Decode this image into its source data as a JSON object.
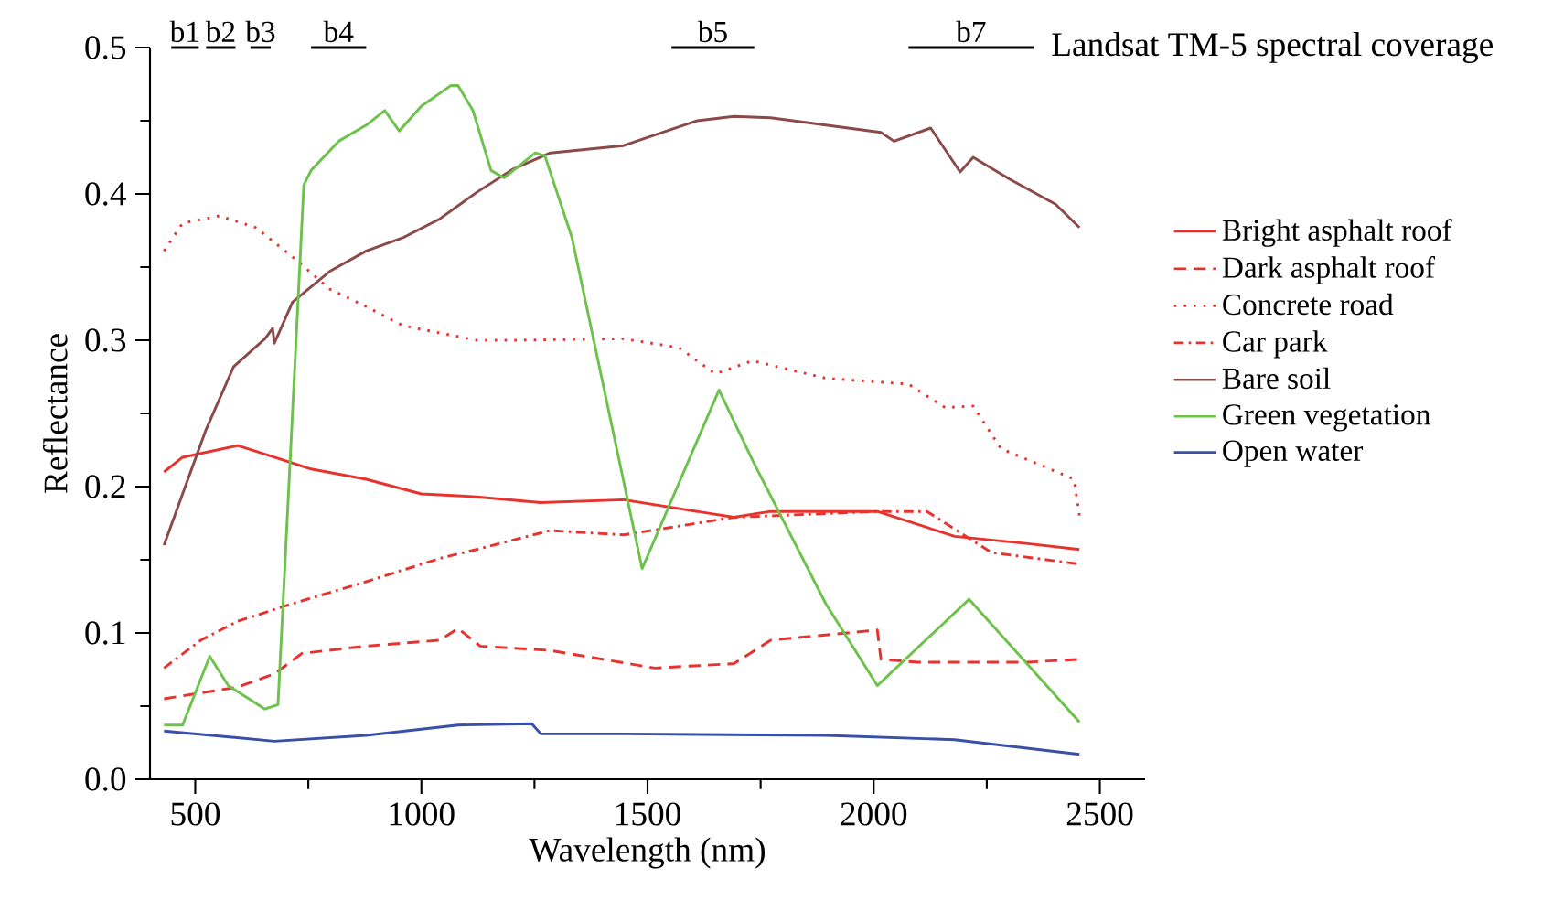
{
  "chart_data": {
    "type": "line",
    "xlabel": "Wavelength (nm)",
    "ylabel": "Reflectance",
    "xlim": [
      400,
      2600
    ],
    "ylim": [
      0,
      0.5
    ],
    "xticks": [
      500,
      {
        "value": 750,
        "label": null
      },
      1000,
      {
        "value": 1250,
        "label": null
      },
      1500,
      {
        "value": 1750,
        "label": null
      },
      2000,
      {
        "value": 2250,
        "label": null
      },
      2500
    ],
    "yticks": [
      {
        "value": 0,
        "label": "0.0"
      },
      {
        "value": 0.05,
        "label": null
      },
      {
        "value": 0.1,
        "label": "0.1"
      },
      {
        "value": 0.15,
        "label": null
      },
      {
        "value": 0.2,
        "label": "0.2"
      },
      {
        "value": 0.25,
        "label": null
      },
      {
        "value": 0.3,
        "label": "0.3"
      },
      {
        "value": 0.35,
        "label": null
      },
      {
        "value": 0.4,
        "label": "0.4"
      },
      {
        "value": 0.45,
        "label": null
      },
      {
        "value": 0.5,
        "label": "0.5"
      }
    ],
    "legend": "right",
    "annotations": [
      "Landsat TM-5 spectral coverage"
    ],
    "series": [
      {
        "name": "Bright asphalt roof",
        "color": "#e8322d",
        "line_style": "solid",
        "x": [
          431,
          472,
          594,
          675,
          756,
          878,
          1000,
          1122,
          1264,
          1447,
          1691,
          1772,
          2008,
          2179,
          2341,
          2455
        ],
        "values": [
          0.21,
          0.22,
          0.228,
          0.22,
          0.212,
          0.205,
          0.195,
          0.193,
          0.189,
          0.191,
          0.179,
          0.183,
          0.183,
          0.166,
          0.161,
          0.157
        ]
      },
      {
        "name": "Dark asphalt roof",
        "color": "#e8322d",
        "line_style": "dashed",
        "x": [
          431,
          594,
          675,
          736,
          878,
          1041,
          1081,
          1130,
          1285,
          1516,
          1691,
          1772,
          2008,
          2016,
          2097,
          2341,
          2455
        ],
        "values": [
          0.055,
          0.063,
          0.072,
          0.086,
          0.091,
          0.095,
          0.103,
          0.091,
          0.088,
          0.076,
          0.079,
          0.095,
          0.102,
          0.082,
          0.08,
          0.08,
          0.082
        ]
      },
      {
        "name": "Concrete road",
        "color": "#e8322d",
        "line_style": "dotted",
        "x": [
          431,
          472,
          553,
          634,
          715,
          797,
          878,
          959,
          1041,
          1122,
          1203,
          1447,
          1569,
          1650,
          1732,
          1894,
          2077,
          2158,
          2220,
          2281,
          2382,
          2443,
          2455
        ],
        "values": [
          0.361,
          0.38,
          0.385,
          0.377,
          0.357,
          0.335,
          0.323,
          0.31,
          0.305,
          0.3,
          0.3,
          0.301,
          0.295,
          0.277,
          0.286,
          0.274,
          0.27,
          0.254,
          0.255,
          0.226,
          0.213,
          0.205,
          0.18
        ]
      },
      {
        "name": "Car park",
        "color": "#e8322d",
        "line_style": "dashdot",
        "x": [
          431,
          512,
          594,
          715,
          878,
          1041,
          1122,
          1285,
          1447,
          1691,
          2008,
          2118,
          2260,
          2455
        ],
        "values": [
          0.076,
          0.095,
          0.108,
          0.12,
          0.135,
          0.151,
          0.157,
          0.17,
          0.167,
          0.179,
          0.183,
          0.183,
          0.155,
          0.147
        ]
      },
      {
        "name": "Bare soil",
        "color": "#8b4a4a",
        "line_style": "solid",
        "x": [
          431,
          472,
          524,
          585,
          654,
          671,
          675,
          715,
          797,
          878,
          959,
          1041,
          1122,
          1203,
          1285,
          1447,
          1610,
          1691,
          1772,
          2016,
          2045,
          2126,
          2191,
          2220,
          2301,
          2402,
          2455
        ],
        "values": [
          0.16,
          0.195,
          0.239,
          0.282,
          0.301,
          0.308,
          0.298,
          0.326,
          0.347,
          0.361,
          0.37,
          0.383,
          0.401,
          0.417,
          0.428,
          0.433,
          0.45,
          0.453,
          0.452,
          0.442,
          0.436,
          0.445,
          0.415,
          0.425,
          0.41,
          0.393,
          0.377
        ]
      },
      {
        "name": "Green vegetation",
        "color": "#6cc24a",
        "line_style": "solid",
        "x": [
          431,
          472,
          532,
          573,
          654,
          683,
          740,
          756,
          817,
          878,
          919,
          951,
          1000,
          1065,
          1081,
          1114,
          1154,
          1183,
          1252,
          1273,
          1333,
          1488,
          1658,
          1732,
          1894,
          2008,
          2211,
          2455
        ],
        "values": [
          0.037,
          0.037,
          0.084,
          0.064,
          0.048,
          0.051,
          0.406,
          0.416,
          0.436,
          0.447,
          0.457,
          0.443,
          0.46,
          0.474,
          0.474,
          0.457,
          0.416,
          0.411,
          0.428,
          0.426,
          0.37,
          0.144,
          0.266,
          0.218,
          0.12,
          0.064,
          0.123,
          0.039
        ]
      },
      {
        "name": "Open water",
        "color": "#3a4fa8",
        "line_style": "solid",
        "x": [
          431,
          675,
          878,
          1081,
          1244,
          1264,
          1447,
          1894,
          2179,
          2455
        ],
        "values": [
          0.033,
          0.026,
          0.03,
          0.037,
          0.038,
          0.031,
          0.031,
          0.03,
          0.027,
          0.017
        ]
      },
      {
        "name": "b1",
        "type": "line",
        "color": "#000000",
        "x": [
          447,
          508
        ],
        "values": [
          0.5,
          0.5
        ]
      },
      {
        "name": "b2",
        "type": "line",
        "color": "#000000",
        "x": [
          524,
          589
        ],
        "values": [
          0.5,
          0.5
        ]
      },
      {
        "name": "b3",
        "type": "line",
        "color": "#000000",
        "x": [
          622,
          667
        ],
        "values": [
          0.5,
          0.5
        ]
      },
      {
        "name": "b4",
        "type": "line",
        "color": "#000000",
        "x": [
          756,
          878
        ],
        "values": [
          0.5,
          0.5
        ]
      },
      {
        "name": "b5",
        "type": "line",
        "color": "#000000",
        "x": [
          1553,
          1736
        ],
        "values": [
          0.5,
          0.5
        ]
      },
      {
        "name": "b7",
        "type": "line",
        "color": "#000000",
        "x": [
          2077,
          2354
        ],
        "values": [
          0.5,
          0.5
        ]
      }
    ]
  }
}
